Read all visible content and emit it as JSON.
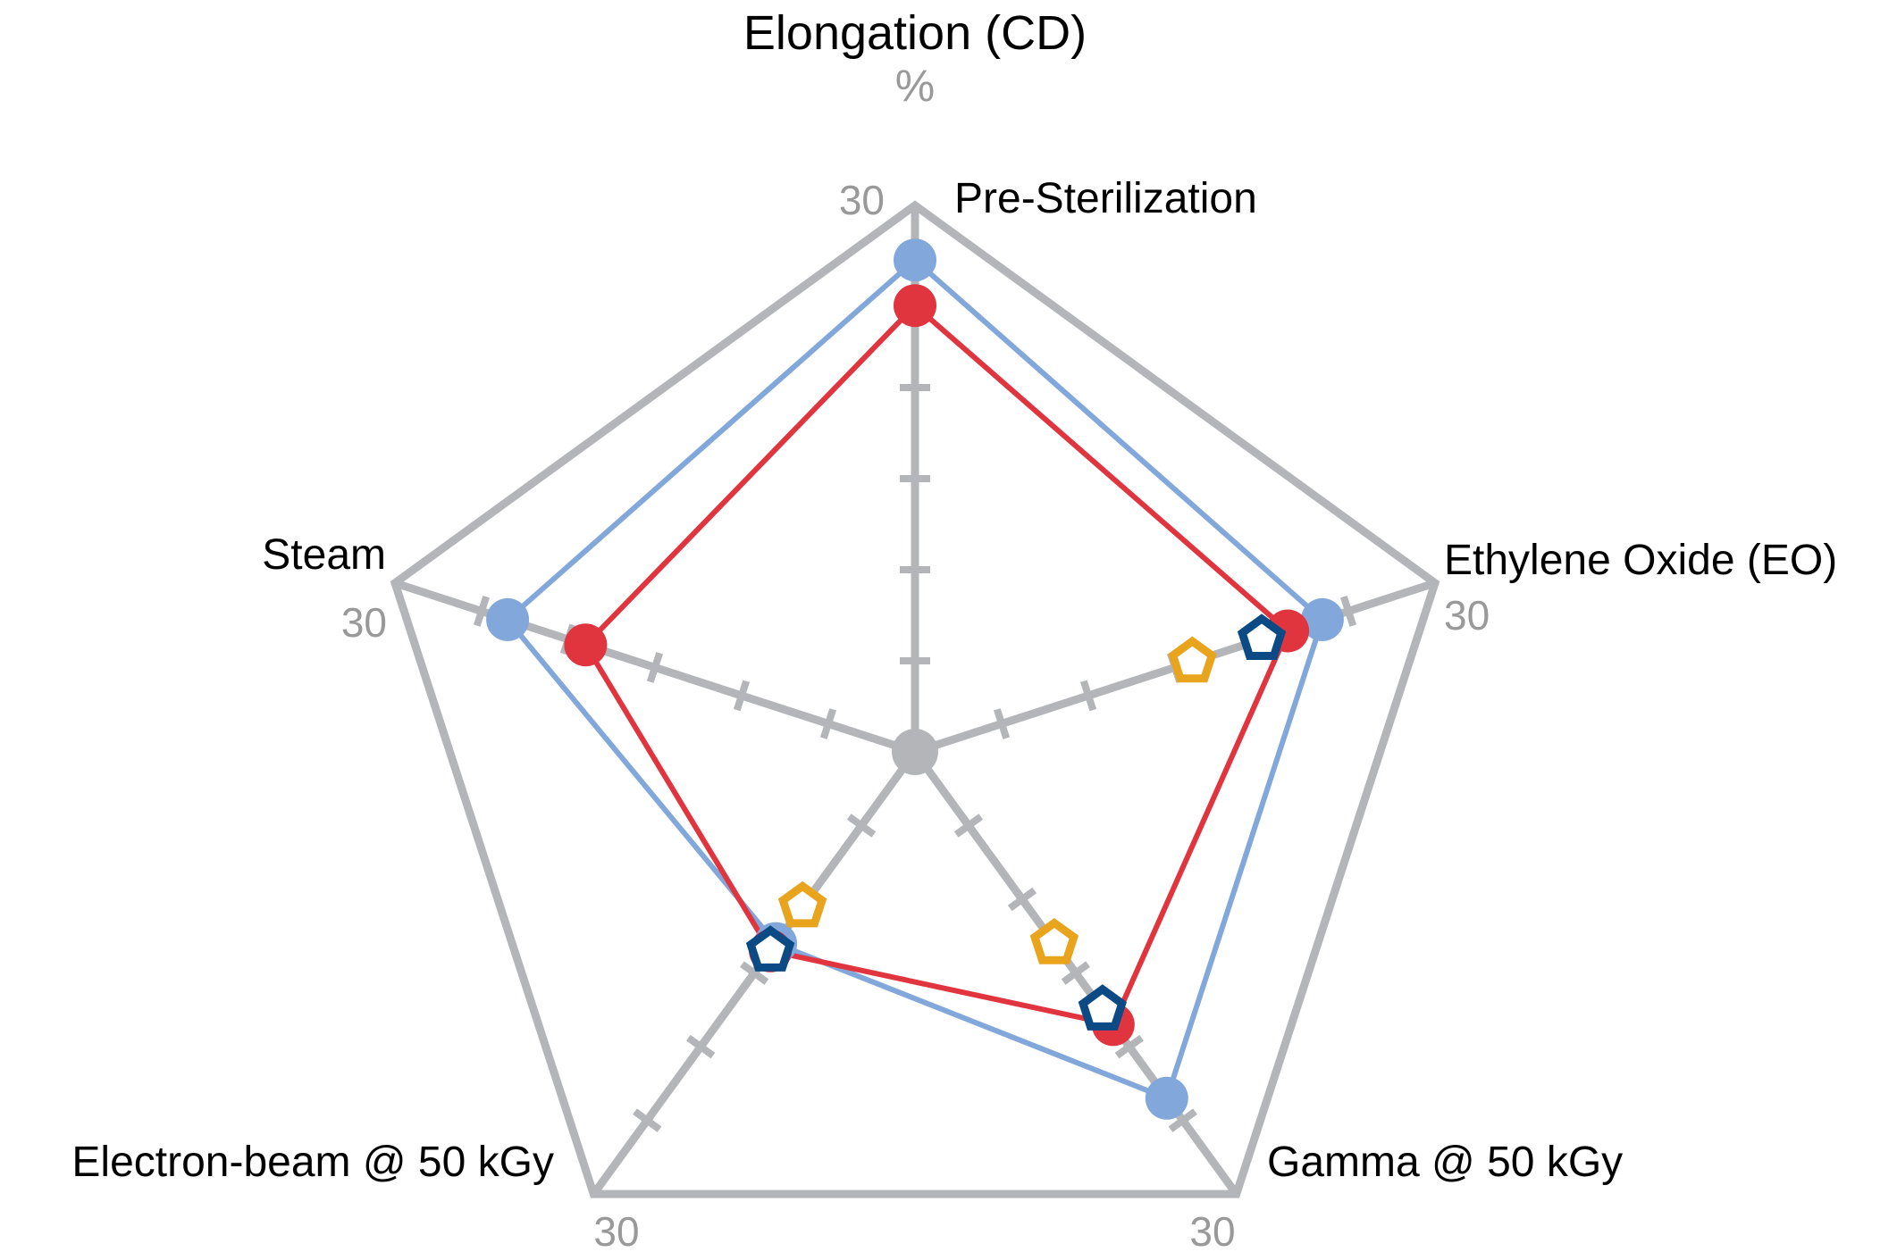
{
  "chart_data": {
    "type": "radar",
    "title": "Elongation (CD)",
    "unit": "%",
    "axes": [
      "Pre-Sterilization",
      "Ethylene Oxide (EO)",
      "Gamma @ 50 kGy",
      "Electron-beam @ 50 kGy",
      "Steam"
    ],
    "axis_max_labels": [
      "30",
      "30",
      "30",
      "30",
      "30"
    ],
    "range": [
      0,
      30
    ],
    "ticks": [
      5,
      10,
      15,
      20,
      25
    ],
    "grid": false,
    "series": [
      {
        "marker": "circle",
        "color": "#82A8DB",
        "values": [
          27,
          23.5,
          23.5,
          13,
          23.5
        ]
      },
      {
        "marker": "circle",
        "color": "#E0353E",
        "values": [
          24.5,
          21.5,
          18.5,
          13.5,
          19
        ]
      },
      {
        "marker": "open-pentagon",
        "color": "#0B4A84",
        "values": [
          null,
          20,
          17.5,
          13.5,
          null
        ]
      },
      {
        "marker": "open-pentagon",
        "color": "#E8A41C",
        "values": [
          null,
          16,
          13,
          10.5,
          null
        ]
      }
    ],
    "colors": {
      "frame": "#B3B5B8",
      "center": "#B3B5B8"
    }
  }
}
